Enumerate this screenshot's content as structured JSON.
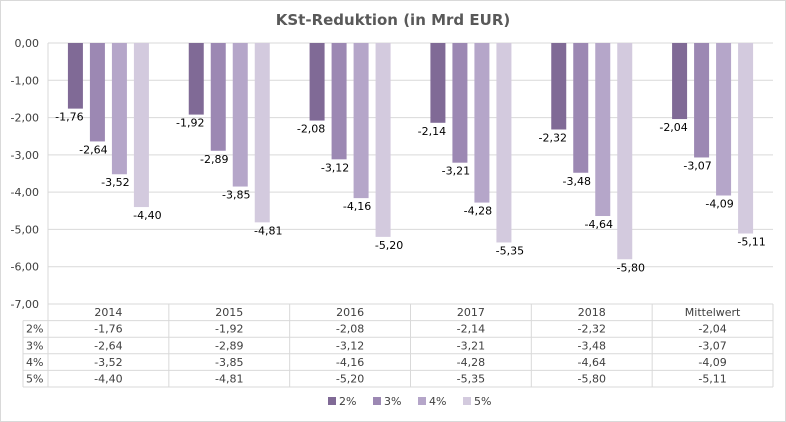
{
  "chart_data": {
    "type": "bar",
    "title": "KSt-Reduktion (in Mrd EUR)",
    "xlabel": "",
    "ylabel": "",
    "ylim": [
      -7,
      0
    ],
    "yticks": [
      "0,00",
      "-1,00",
      "-2,00",
      "-3,00",
      "-4,00",
      "-5,00",
      "-6,00",
      "-7,00"
    ],
    "grid": true,
    "legend_position": "bottom",
    "categories": [
      "2014",
      "2015",
      "2016",
      "2017",
      "2018",
      "Mittelwert"
    ],
    "series": [
      {
        "name": "2%",
        "color": "#806a96",
        "values": [
          -1.76,
          -1.92,
          -2.08,
          -2.14,
          -2.32,
          -2.04
        ],
        "labels": [
          "-1,76",
          "-1,92",
          "-2,08",
          "-2,14",
          "-2,32",
          "-2,04"
        ]
      },
      {
        "name": "3%",
        "color": "#9c88b3",
        "values": [
          -2.64,
          -2.89,
          -3.12,
          -3.21,
          -3.48,
          -3.07
        ],
        "labels": [
          "-2,64",
          "-2,89",
          "-3,12",
          "-3,21",
          "-3,48",
          "-3,07"
        ]
      },
      {
        "name": "4%",
        "color": "#b5a6c9",
        "values": [
          -3.52,
          -3.85,
          -4.16,
          -4.28,
          -4.64,
          -4.09
        ],
        "labels": [
          "-3,52",
          "-3,85",
          "-4,16",
          "-4,28",
          "-4,64",
          "-4,09"
        ]
      },
      {
        "name": "5%",
        "color": "#d3cade",
        "values": [
          -4.4,
          -4.81,
          -5.2,
          -5.35,
          -5.8,
          -5.11
        ],
        "labels": [
          "-4,40",
          "-4,81",
          "-5,20",
          "-5,35",
          "-5,80",
          "-5,11"
        ]
      }
    ]
  }
}
